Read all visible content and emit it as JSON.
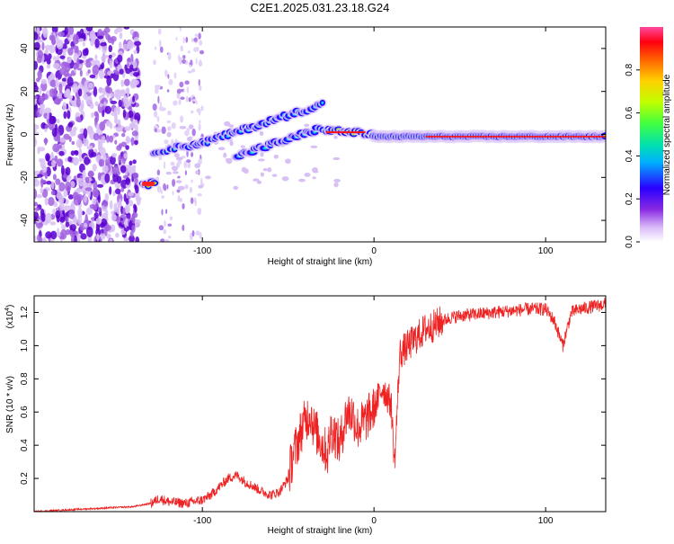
{
  "title": "C2E1.2025.031.23.18.G24",
  "colors": {
    "spectrogram_scale": [
      "#ffffff",
      "#e8d8f8",
      "#a060e0",
      "#5a00d0",
      "#2020ff",
      "#00c8ff",
      "#00e080",
      "#80ff00",
      "#ffe000",
      "#ff8000",
      "#ff0000",
      "#ff40a0"
    ],
    "snr_line": "#ee2222"
  },
  "chart_data": [
    {
      "type": "heatmap",
      "title": "C2E1.2025.031.23.18.G24",
      "xlabel": "Height of straight line (km)",
      "ylabel": "Frequency (Hz)",
      "xlim": [
        -198,
        135
      ],
      "ylim": [
        -50,
        50
      ],
      "x_ticks": [
        -100,
        0,
        100
      ],
      "y_ticks": [
        -40,
        -20,
        0,
        20,
        40
      ],
      "colorbar": {
        "label": "Normalized spectral amplitude",
        "range": [
          0,
          1
        ],
        "ticks": [
          "0.0",
          "0.2",
          "0.4",
          "0.6",
          "0.8"
        ]
      },
      "features": [
        {
          "x": [
            -135,
            -128
          ],
          "freq": -23,
          "amplitude": 0.9
        },
        {
          "x": [
            -128,
            -100
          ],
          "freq": [
            -8,
            -4
          ],
          "amplitude": 0.4
        },
        {
          "x": [
            -100,
            -30
          ],
          "freq": [
            -4,
            14
          ],
          "amplitude": 0.5
        },
        {
          "x": [
            -80,
            -30
          ],
          "freq": [
            -10,
            3
          ],
          "amplitude": 0.45
        },
        {
          "x": [
            -28,
            0
          ],
          "freq": [
            2,
            0
          ],
          "amplitude": 0.9
        },
        {
          "x": [
            0,
            135
          ],
          "freq": -1,
          "amplitude": 1.0
        }
      ]
    },
    {
      "type": "line",
      "xlabel": "Height of straight line (km)",
      "ylabel": "SNR (10 * v/v)",
      "y_scale_label": "(x10",
      "y_scale_exponent": "4",
      "xlim": [
        -198,
        135
      ],
      "ylim": [
        0,
        1.3
      ],
      "x_ticks": [
        -100,
        0,
        100
      ],
      "y_ticks": [
        "0.2",
        "0.4",
        "0.6",
        "0.8",
        "1.0",
        "1.2"
      ],
      "series": [
        {
          "x": [
            -198,
            -180,
            -160,
            -140,
            -130,
            -125,
            -120,
            -110,
            -100,
            -95,
            -90,
            -85,
            -80,
            -75,
            -70,
            -65,
            -60,
            -55,
            -50,
            -47,
            -45,
            -42,
            -40,
            -37,
            -35,
            -32,
            -30,
            -27,
            -25,
            -22,
            -20,
            -17,
            -15,
            -12,
            -10,
            -5,
            0,
            5,
            10,
            12,
            15,
            20,
            25,
            30,
            35,
            40,
            45,
            50,
            60,
            70,
            80,
            90,
            100,
            105,
            110,
            115,
            120,
            125,
            130,
            135
          ],
          "y": [
            0.0,
            0.01,
            0.02,
            0.03,
            0.05,
            0.08,
            0.06,
            0.05,
            0.07,
            0.1,
            0.15,
            0.2,
            0.22,
            0.18,
            0.15,
            0.12,
            0.1,
            0.12,
            0.2,
            0.35,
            0.4,
            0.5,
            0.55,
            0.6,
            0.5,
            0.45,
            0.4,
            0.35,
            0.5,
            0.45,
            0.4,
            0.55,
            0.6,
            0.58,
            0.5,
            0.55,
            0.62,
            0.75,
            0.65,
            0.28,
            0.95,
            1.0,
            1.05,
            1.1,
            1.12,
            1.15,
            1.17,
            1.18,
            1.19,
            1.2,
            1.21,
            1.22,
            1.22,
            1.15,
            1.0,
            1.2,
            1.22,
            1.23,
            1.24,
            1.25
          ]
        }
      ]
    }
  ]
}
